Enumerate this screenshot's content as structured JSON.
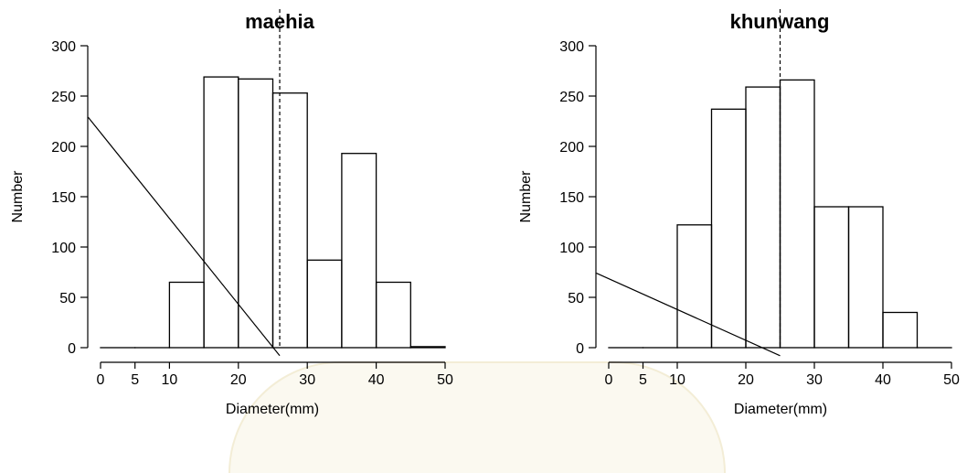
{
  "chart_data": [
    {
      "type": "bar",
      "title": "maehia",
      "xlabel": "Diameter(mm)",
      "ylabel": "Number",
      "xlim": [
        0,
        50
      ],
      "ylim": [
        0,
        300
      ],
      "xticks": [
        "0",
        "5",
        "10",
        "20",
        "30",
        "40",
        "50"
      ],
      "yticks": [
        "0",
        "50",
        "100",
        "150",
        "200",
        "250",
        "300"
      ],
      "bins": [
        {
          "x0": 0,
          "x1": 5,
          "value": 0
        },
        {
          "x0": 5,
          "x1": 10,
          "value": 0
        },
        {
          "x0": 10,
          "x1": 15,
          "value": 65
        },
        {
          "x0": 15,
          "x1": 20,
          "value": 269
        },
        {
          "x0": 20,
          "x1": 25,
          "value": 267
        },
        {
          "x0": 25,
          "x1": 30,
          "value": 253
        },
        {
          "x0": 30,
          "x1": 35,
          "value": 87
        },
        {
          "x0": 35,
          "x1": 40,
          "value": 193
        },
        {
          "x0": 40,
          "x1": 45,
          "value": 65
        },
        {
          "x0": 45,
          "x1": 50,
          "value": 1
        }
      ],
      "vline_x": 26,
      "line": {
        "x1": -1.8,
        "y1": 229,
        "x2": 26,
        "y2": -8
      }
    },
    {
      "type": "bar",
      "title": "khunwang",
      "xlabel": "Diameter(mm)",
      "ylabel": "Number",
      "xlim": [
        0,
        50
      ],
      "ylim": [
        0,
        300
      ],
      "xticks": [
        "0",
        "5",
        "10",
        "20",
        "30",
        "40",
        "50"
      ],
      "yticks": [
        "0",
        "50",
        "100",
        "150",
        "200",
        "250",
        "300"
      ],
      "bins": [
        {
          "x0": 0,
          "x1": 5,
          "value": 0
        },
        {
          "x0": 5,
          "x1": 10,
          "value": 0
        },
        {
          "x0": 10,
          "x1": 15,
          "value": 122
        },
        {
          "x0": 15,
          "x1": 20,
          "value": 237
        },
        {
          "x0": 20,
          "x1": 25,
          "value": 259
        },
        {
          "x0": 25,
          "x1": 30,
          "value": 266
        },
        {
          "x0": 30,
          "x1": 35,
          "value": 140
        },
        {
          "x0": 35,
          "x1": 40,
          "value": 140
        },
        {
          "x0": 40,
          "x1": 45,
          "value": 35
        },
        {
          "x0": 45,
          "x1": 50,
          "value": 0
        }
      ],
      "vline_x": 25,
      "line": {
        "x1": -1.8,
        "y1": 74,
        "x2": 25,
        "y2": -8
      }
    }
  ]
}
